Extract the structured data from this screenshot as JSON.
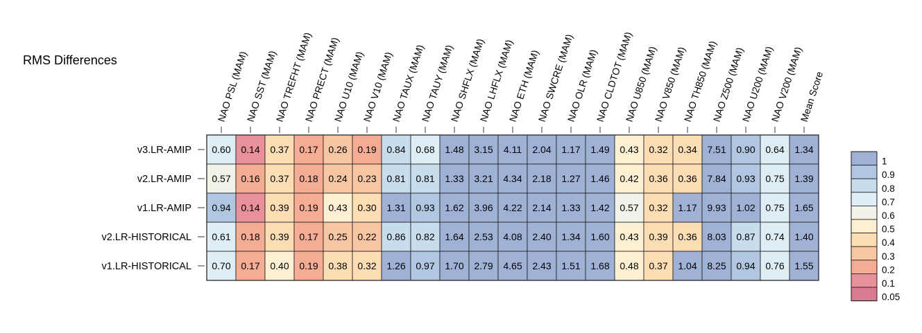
{
  "chart_data": {
    "type": "heatmap",
    "title": "RMS Differences",
    "columns": [
      "NAO PSL (MAM)",
      "NAO SST (MAM)",
      "NAO TREFHT (MAM)",
      "NAO PRECT (MAM)",
      "NAO U10 (MAM)",
      "NAO V10 (MAM)",
      "NAO TAUX (MAM)",
      "NAO TAUY (MAM)",
      "NAO SHFLX (MAM)",
      "NAO LHFLX (MAM)",
      "NAO ETH (MAM)",
      "NAO SWCRE (MAM)",
      "NAO OLR (MAM)",
      "NAO CLDTOT (MAM)",
      "NAO U850 (MAM)",
      "NAO V850 (MAM)",
      "NAO TH850 (MAM)",
      "NAO Z500 (MAM)",
      "NAO U200 (MAM)",
      "NAO V200 (MAM)",
      "Mean Score"
    ],
    "rows": [
      "v3.LR-AMIP",
      "v2.LR-AMIP",
      "v1.LR-AMIP",
      "v2.LR-HISTORICAL",
      "v1.LR-HISTORICAL"
    ],
    "values": [
      [
        0.6,
        0.14,
        0.37,
        0.17,
        0.26,
        0.19,
        0.84,
        0.68,
        1.48,
        3.15,
        4.11,
        2.04,
        1.17,
        1.49,
        0.43,
        0.32,
        0.34,
        7.51,
        0.9,
        0.64,
        1.34
      ],
      [
        0.57,
        0.16,
        0.37,
        0.18,
        0.24,
        0.23,
        0.81,
        0.81,
        1.33,
        3.21,
        4.34,
        2.18,
        1.27,
        1.46,
        0.42,
        0.36,
        0.36,
        7.84,
        0.93,
        0.75,
        1.39
      ],
      [
        0.94,
        0.14,
        0.39,
        0.19,
        0.43,
        0.3,
        1.31,
        0.93,
        1.62,
        3.96,
        4.22,
        2.14,
        1.33,
        1.42,
        0.57,
        0.32,
        1.17,
        9.93,
        1.02,
        0.75,
        1.65
      ],
      [
        0.61,
        0.18,
        0.39,
        0.17,
        0.25,
        0.22,
        0.86,
        0.82,
        1.64,
        2.53,
        4.08,
        2.4,
        1.34,
        1.6,
        0.43,
        0.39,
        0.36,
        8.03,
        0.87,
        0.74,
        1.4
      ],
      [
        0.7,
        0.17,
        0.4,
        0.19,
        0.38,
        0.32,
        1.26,
        0.97,
        1.7,
        2.79,
        4.65,
        2.43,
        1.51,
        1.68,
        0.48,
        0.37,
        1.04,
        8.25,
        0.94,
        0.76,
        1.55
      ]
    ],
    "legend": {
      "labels": [
        "1",
        "0.9",
        "0.8",
        "0.7",
        "0.6",
        "0.5",
        "0.4",
        "0.3",
        "0.2",
        "0.1",
        "0.05"
      ],
      "colors": [
        "#a0b1d6",
        "#b1c7e1",
        "#c7dcec",
        "#dfeef4",
        "#f2f2e9",
        "#fdf0d2",
        "#fcddb4",
        "#f8c6a2",
        "#f4ad94",
        "#e9919a",
        "#d87b91"
      ],
      "placement": "right"
    },
    "colors": {
      "high": "#a0b1d6",
      "v090": "#b1c7e1",
      "v080": "#c7dcec",
      "v070": "#dfeef4",
      "v060": "#f2f2e9",
      "v050": "#fdf0d2",
      "v040": "#fcddb4",
      "v030": "#f8c6a2",
      "v020": "#f4ad94",
      "v010": "#e9919a",
      "low": "#d87b91"
    }
  }
}
